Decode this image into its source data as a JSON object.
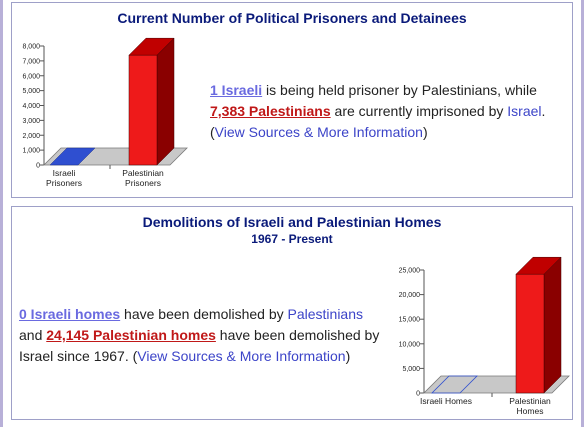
{
  "colors": {
    "israeli_bar": "#2f4fd0",
    "palestinian_bar": "#ee1a1a",
    "palestinian_side": "#8a0000",
    "palestinian_top": "#c00000",
    "floor": "#c8c8c8",
    "floor_edge": "#7a7a7a",
    "title": "#0a1a7a",
    "link_blue": "#3c44c8"
  },
  "panels": [
    {
      "title": "Current Number of Political Prisoners and Detainees",
      "stat": {
        "israeli_link": "1 Israeli",
        "part1": " is being held prisoner by Palestinians, while ",
        "palestinian_link": "7,383 Palestinians",
        "part2": " are currently imprisoned by ",
        "israel_link": "Israel",
        "part3": ". (",
        "sources_link": "View Sources & More Information",
        "part4": ")"
      }
    },
    {
      "title": "Demolitions of Israeli and Palestinian Homes",
      "subtitle": "1967 - Present",
      "stat": {
        "israeli_link": "0 Israeli homes",
        "part1": " have been demolished by ",
        "palestinians_link": "Palestinians",
        "part2": " and ",
        "palestinian_link": "24,145 Palestinian homes",
        "part3": " have been demolished by Israel since 1967. (",
        "sources_link": "View Sources & More Information",
        "part4": ")"
      }
    }
  ],
  "chart_data": [
    {
      "type": "bar",
      "categories": [
        "Israeli Prisoners",
        "Palestinian Prisoners"
      ],
      "category_lines": [
        [
          "Israeli",
          "Prisoners"
        ],
        [
          "Palestinian",
          "Prisoners"
        ]
      ],
      "values": [
        1,
        7383
      ],
      "ylim": [
        0,
        8000
      ],
      "yticks": [
        0,
        1000,
        2000,
        3000,
        4000,
        5000,
        6000,
        7000,
        8000
      ],
      "ytick_labels": [
        "0",
        "1,000",
        "2,000",
        "3,000",
        "4,000",
        "5,000",
        "6,000",
        "7,000",
        "8,000"
      ],
      "title": "",
      "xlabel": "",
      "ylabel": "",
      "style": "3d"
    },
    {
      "type": "bar",
      "categories": [
        "Israeli Homes",
        "Palestinian Homes"
      ],
      "category_lines": [
        [
          "Israeli Homes"
        ],
        [
          "Palestinian",
          "Homes"
        ]
      ],
      "values": [
        0,
        24145
      ],
      "ylim": [
        0,
        25000
      ],
      "yticks": [
        0,
        5000,
        10000,
        15000,
        20000,
        25000
      ],
      "ytick_labels": [
        "0",
        "5,000",
        "10,000",
        "15,000",
        "20,000",
        "25,000"
      ],
      "title": "",
      "xlabel": "",
      "ylabel": "",
      "style": "3d"
    }
  ]
}
